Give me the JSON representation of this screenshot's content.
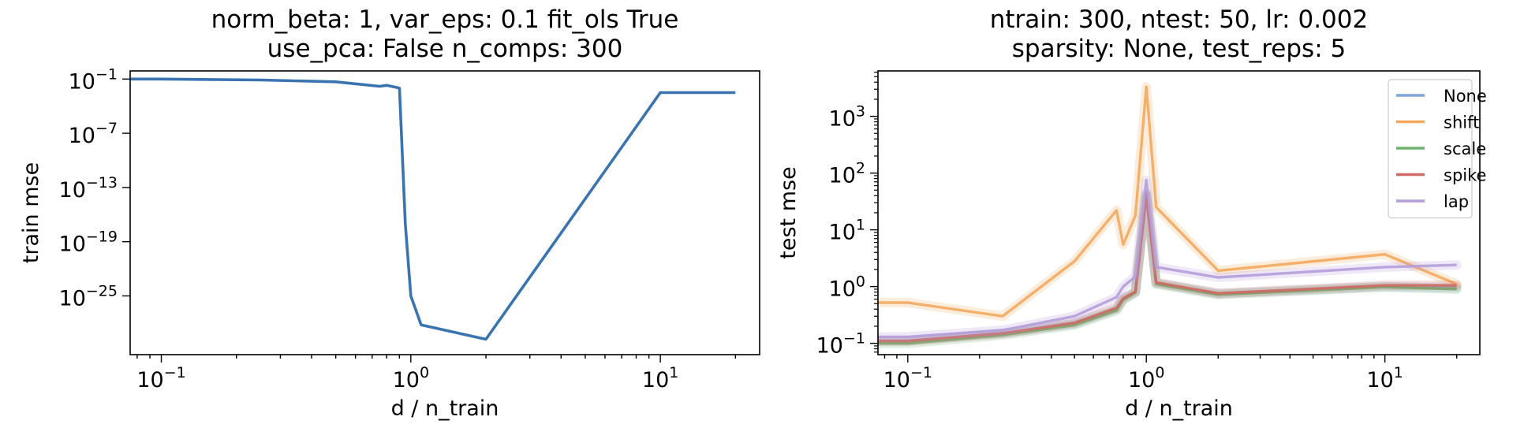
{
  "chart_data": [
    {
      "type": "line",
      "title": [
        "norm_beta: 1, var_eps: 0.1 fit_ols True",
        "use_pca: False n_comps: 300"
      ],
      "xlabel": "d / n_train",
      "ylabel": "train mse",
      "xscale": "log",
      "yscale": "log",
      "xlim": [
        0.075,
        25
      ],
      "ylim_log10": [
        -31.5,
        -0.1
      ],
      "grid": false,
      "xticks": [
        {
          "base": "10",
          "exp": "−1",
          "value": 0.1
        },
        {
          "base": "10",
          "exp": "0",
          "value": 1
        },
        {
          "base": "10",
          "exp": "1",
          "value": 10
        }
      ],
      "yticks": [
        {
          "base": "10",
          "exp": "−1",
          "value_log10": -1
        },
        {
          "base": "10",
          "exp": "−7",
          "value_log10": -7
        },
        {
          "base": "10",
          "exp": "−13",
          "value_log10": -13
        },
        {
          "base": "10",
          "exp": "−19",
          "value_log10": -19
        },
        {
          "base": "10",
          "exp": "−25",
          "value_log10": -25
        }
      ],
      "series": [
        {
          "color": "#3a74b0",
          "x": [
            0.075,
            0.1,
            0.25,
            0.5,
            0.75,
            0.8,
            0.9,
            0.95,
            1.0,
            1.1,
            2.0,
            10.0,
            20.0
          ],
          "y_log10": [
            -1.0,
            -1.0,
            -1.1,
            -1.3,
            -1.8,
            -1.7,
            -2.0,
            -17.0,
            -25.0,
            -28.2,
            -29.8,
            -2.5,
            -2.5
          ]
        }
      ]
    },
    {
      "type": "line",
      "title": [
        "ntrain: 300, ntest: 50, lr: 0.002",
        "sparsity: None, test_reps: 5"
      ],
      "xlabel": "d / n_train",
      "ylabel": "test mse",
      "xscale": "log",
      "yscale": "log",
      "xlim": [
        0.075,
        25
      ],
      "ylim_log10": [
        -1.2,
        3.8
      ],
      "grid": false,
      "legend_position": "top-right",
      "xticks": [
        {
          "base": "10",
          "exp": "−1",
          "value": 0.1
        },
        {
          "base": "10",
          "exp": "0",
          "value": 1
        },
        {
          "base": "10",
          "exp": "1",
          "value": 10
        }
      ],
      "yticks": [
        {
          "base": "10",
          "exp": "−1",
          "value_log10": -1
        },
        {
          "base": "10",
          "exp": "0",
          "value_log10": 0
        },
        {
          "base": "10",
          "exp": "1",
          "value_log10": 1
        },
        {
          "base": "10",
          "exp": "2",
          "value_log10": 2
        },
        {
          "base": "10",
          "exp": "3",
          "value_log10": 3
        }
      ],
      "series": [
        {
          "name": "None",
          "color": "#7ea6d9",
          "x": [
            0.075,
            0.1,
            0.25,
            0.5,
            0.75,
            0.8,
            0.9,
            1.0,
            1.1,
            2.0,
            10.0,
            20.0
          ],
          "y": [
            0.11,
            0.11,
            0.15,
            0.22,
            0.4,
            0.6,
            0.8,
            45,
            1.15,
            0.75,
            1.0,
            0.95
          ]
        },
        {
          "name": "shift",
          "color": "#f3a85d",
          "x": [
            0.075,
            0.1,
            0.25,
            0.5,
            0.75,
            0.8,
            0.9,
            1.0,
            1.1,
            2.0,
            10.0,
            20.0
          ],
          "y": [
            0.52,
            0.52,
            0.3,
            2.8,
            22,
            5.5,
            18,
            3300,
            25,
            1.9,
            3.7,
            1.1
          ]
        },
        {
          "name": "scale",
          "color": "#6db36d",
          "x": [
            0.075,
            0.1,
            0.25,
            0.5,
            0.75,
            0.8,
            0.9,
            1.0,
            1.1,
            2.0,
            10.0,
            20.0
          ],
          "y": [
            0.1,
            0.1,
            0.14,
            0.21,
            0.38,
            0.58,
            0.78,
            40,
            1.1,
            0.72,
            0.98,
            0.9
          ]
        },
        {
          "name": "spike",
          "color": "#cf6a64",
          "x": [
            0.075,
            0.1,
            0.25,
            0.5,
            0.75,
            0.8,
            0.9,
            1.0,
            1.1,
            2.0,
            10.0,
            20.0
          ],
          "y": [
            0.11,
            0.11,
            0.15,
            0.23,
            0.42,
            0.62,
            0.82,
            42,
            1.18,
            0.76,
            1.05,
            1.05
          ]
        },
        {
          "name": "lap",
          "color": "#b49ddb",
          "x": [
            0.075,
            0.1,
            0.25,
            0.5,
            0.75,
            0.8,
            0.9,
            1.0,
            1.1,
            2.0,
            10.0,
            20.0
          ],
          "y": [
            0.13,
            0.13,
            0.17,
            0.3,
            0.65,
            1.0,
            1.5,
            75,
            2.2,
            1.45,
            2.2,
            2.4
          ]
        }
      ]
    }
  ]
}
